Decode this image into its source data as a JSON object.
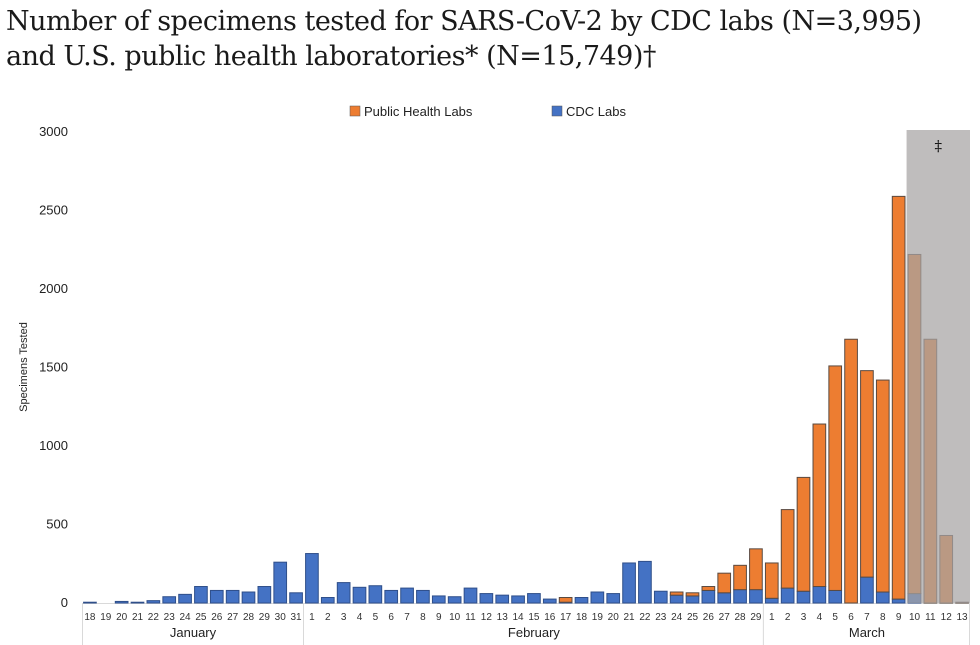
{
  "title_lines": [
    "Number of specimens tested for SARS-CoV-2 by CDC labs (N=3,995)",
    "and U.S. public health laboratories* (N=15,749)†"
  ],
  "chart_data": {
    "type": "bar",
    "stacked": true,
    "title": "Number of specimens tested for SARS-CoV-2 by CDC labs (N=3,995) and U.S. public health laboratories* (N=15,749)†",
    "xlabel": "",
    "ylabel": "Specimens Tested",
    "ylim": [
      0,
      3000
    ],
    "yticks": [
      0,
      500,
      1000,
      1500,
      2000,
      2500,
      3000
    ],
    "grid": false,
    "legend_position": "top-center",
    "months": [
      {
        "name": "January",
        "days": [
          "18",
          "19",
          "20",
          "21",
          "22",
          "23",
          "24",
          "25",
          "26",
          "27",
          "28",
          "29",
          "30",
          "31"
        ]
      },
      {
        "name": "February",
        "days": [
          "1",
          "2",
          "3",
          "4",
          "5",
          "6",
          "7",
          "8",
          "9",
          "10",
          "11",
          "12",
          "13",
          "14",
          "15",
          "16",
          "17",
          "18",
          "19",
          "20",
          "21",
          "22",
          "23",
          "24",
          "25",
          "26",
          "27",
          "28",
          "29"
        ]
      },
      {
        "name": "March",
        "days": [
          "1",
          "2",
          "3",
          "4",
          "5",
          "6",
          "7",
          "8",
          "9",
          "10",
          "11",
          "12",
          "13"
        ]
      }
    ],
    "series": [
      {
        "name": "CDC Labs",
        "color": "#4472c4",
        "values": [
          5,
          0,
          10,
          5,
          15,
          40,
          55,
          105,
          80,
          80,
          70,
          105,
          260,
          65,
          315,
          35,
          130,
          100,
          110,
          80,
          95,
          80,
          45,
          40,
          95,
          60,
          50,
          45,
          60,
          25,
          5,
          35,
          70,
          60,
          255,
          265,
          75,
          50,
          45,
          80,
          65,
          85,
          85,
          30,
          95,
          75,
          105,
          80,
          0,
          165,
          70,
          25,
          60,
          0,
          0,
          0
        ]
      },
      {
        "name": "Public Health Labs",
        "color": "#ed7d31",
        "values": [
          0,
          0,
          0,
          0,
          0,
          0,
          0,
          0,
          0,
          0,
          0,
          0,
          0,
          0,
          0,
          0,
          0,
          0,
          0,
          0,
          0,
          0,
          0,
          0,
          0,
          0,
          0,
          0,
          0,
          0,
          30,
          0,
          0,
          0,
          0,
          0,
          0,
          20,
          20,
          25,
          125,
          155,
          260,
          225,
          500,
          725,
          1035,
          1430,
          1680,
          1315,
          1350,
          2565,
          2160,
          1680,
          430,
          5
        ]
      }
    ],
    "shaded_region": {
      "from": "March 10",
      "to": "March 13",
      "annotation": "‡",
      "color": "#a6a3a3"
    }
  }
}
